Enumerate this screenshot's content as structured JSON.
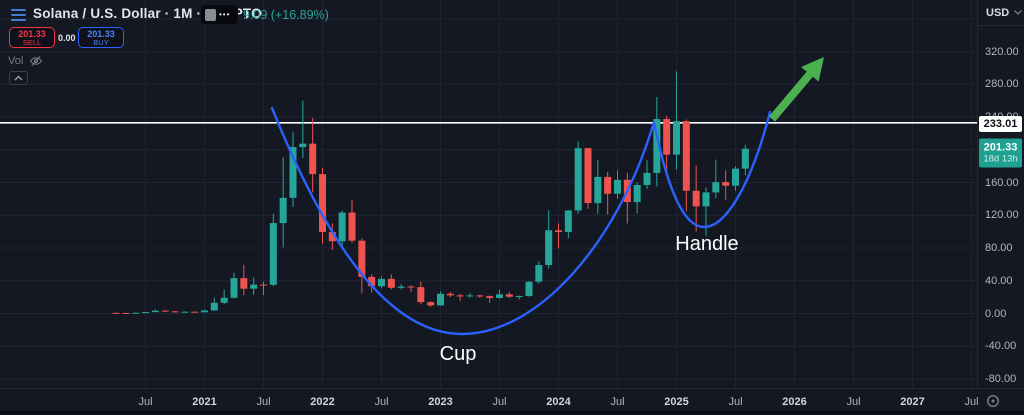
{
  "header": {
    "symbol_title": "Solana / U.S. Dollar · 1M · CRYPTO",
    "menu_dots": "•••",
    "change_text": "9.09 (+16.89%)",
    "sell": {
      "price": "201.33",
      "label": "SELL"
    },
    "spread": "0.00",
    "buy": {
      "price": "201.33",
      "label": "BUY"
    },
    "vol_label": "Vol"
  },
  "annotations": {
    "cup": "Cup",
    "handle": "Handle"
  },
  "price_axis": {
    "currency": "USD",
    "labels": [
      "320.00",
      "280.00",
      "240.00",
      "160.00",
      "120.00",
      "80.00",
      "40.00",
      "0.00",
      "-40.00",
      "-80.00"
    ],
    "line_label": "233.01",
    "current": {
      "price": "201.33",
      "countdown": "18d 13h"
    }
  },
  "time_axis": {
    "ticks": [
      {
        "label": "Jul",
        "i": 3
      },
      {
        "label": "2021",
        "i": 9
      },
      {
        "label": "Jul",
        "i": 15
      },
      {
        "label": "2022",
        "i": 21
      },
      {
        "label": "Jul",
        "i": 27
      },
      {
        "label": "2023",
        "i": 33
      },
      {
        "label": "Jul",
        "i": 39
      },
      {
        "label": "2024",
        "i": 45
      },
      {
        "label": "Jul",
        "i": 51
      },
      {
        "label": "2025",
        "i": 57
      },
      {
        "label": "Jul",
        "i": 63
      },
      {
        "label": "2026",
        "i": 69
      },
      {
        "label": "Jul",
        "i": 75
      },
      {
        "label": "2027",
        "i": 81
      },
      {
        "label": "Jul",
        "i": 87
      }
    ]
  },
  "colors": {
    "background": "#141823",
    "grid": "#1e2431",
    "up": "#26a69a",
    "down": "#ef5350",
    "curve": "#2962ff",
    "arrow": "#4caf50",
    "breakout_line": "#ffffff",
    "sell_accent": "#f23645",
    "buy_accent": "#2962ff",
    "axis_text": "#b2b5be",
    "current_label_bg": "#1fa191"
  },
  "icons": {
    "symbol_menu": "hamburger-menu",
    "ohlc_more": "ellipsis",
    "vol_visibility": "eye-off",
    "pane_collapse": "chevron-up",
    "currency_dropdown": "caret-down",
    "scale_reset": "target-circle"
  },
  "chart_data": {
    "type": "candlestick",
    "title": "Solana / U.S. Dollar",
    "timeframe": "1M",
    "exchange_type": "CRYPTO",
    "start_month": "2020-04",
    "interval_months": 1,
    "visible_price_range": [
      -95,
      380
    ],
    "visible_time_range": [
      "2020-02",
      "2027-10"
    ],
    "grid": true,
    "candles": [
      [
        0.85,
        1.05,
        0.46,
        0.64
      ],
      [
        0.64,
        0.78,
        0.49,
        0.59
      ],
      [
        0.59,
        1.0,
        0.55,
        0.88
      ],
      [
        0.88,
        1.95,
        0.77,
        1.7
      ],
      [
        1.7,
        4.9,
        1.6,
        3.47
      ],
      [
        3.47,
        4.4,
        2.2,
        2.63
      ],
      [
        2.63,
        3.0,
        1.2,
        1.52
      ],
      [
        1.52,
        2.6,
        1.2,
        2.2
      ],
      [
        2.2,
        2.4,
        1.3,
        1.51
      ],
      [
        1.51,
        4.7,
        1.4,
        3.7
      ],
      [
        3.7,
        19.0,
        3.6,
        13.1
      ],
      [
        13.1,
        29.3,
        11.2,
        19.2
      ],
      [
        19.2,
        49.9,
        18.3,
        43.2
      ],
      [
        43.2,
        59.6,
        22.2,
        30.3
      ],
      [
        30.3,
        44.3,
        23.0,
        35.3
      ],
      [
        35.3,
        38.7,
        22.6,
        35.1
      ],
      [
        35.1,
        122.0,
        33.2,
        110.5
      ],
      [
        110.5,
        191.0,
        81.0,
        141.3
      ],
      [
        141.3,
        222.0,
        130.0,
        203.3
      ],
      [
        203.3,
        260.1,
        190.0,
        207.5
      ],
      [
        207.5,
        239.0,
        148.0,
        170.3
      ],
      [
        170.3,
        178.0,
        85.1,
        99.6
      ],
      [
        99.6,
        110.0,
        77.6,
        88.3
      ],
      [
        88.3,
        126.0,
        77.9,
        123.3
      ],
      [
        123.3,
        138.9,
        86.5,
        89.0
      ],
      [
        89.0,
        92.0,
        24.6,
        44.8
      ],
      [
        44.8,
        48.0,
        25.8,
        33.3
      ],
      [
        33.3,
        45.5,
        30.9,
        42.3
      ],
      [
        42.3,
        47.8,
        29.6,
        31.4
      ],
      [
        31.4,
        36.0,
        29.5,
        33.0
      ],
      [
        33.0,
        34.4,
        26.0,
        32.2
      ],
      [
        32.2,
        38.9,
        11.1,
        13.9
      ],
      [
        13.9,
        14.9,
        8.0,
        9.9
      ],
      [
        9.9,
        26.8,
        9.6,
        24.1
      ],
      [
        24.1,
        26.5,
        20.0,
        22.2
      ],
      [
        22.2,
        24.0,
        15.6,
        20.9
      ],
      [
        20.9,
        25.1,
        19.4,
        22.1
      ],
      [
        22.1,
        22.9,
        18.9,
        21.2
      ],
      [
        21.2,
        22.0,
        13.0,
        19.0
      ],
      [
        19.0,
        29.1,
        18.1,
        23.4
      ],
      [
        23.4,
        26.1,
        19.1,
        20.5
      ],
      [
        20.5,
        21.9,
        17.3,
        21.4
      ],
      [
        21.4,
        39.5,
        20.7,
        38.8
      ],
      [
        38.8,
        63.8,
        36.6,
        59.2
      ],
      [
        59.2,
        126.0,
        55.0,
        101.7
      ],
      [
        101.7,
        110.0,
        79.5,
        99.6
      ],
      [
        99.6,
        126.5,
        92.0,
        125.9
      ],
      [
        125.9,
        210.2,
        122.0,
        202.0
      ],
      [
        202.0,
        202.5,
        128.0,
        134.9
      ],
      [
        134.9,
        188.0,
        122.0,
        166.9
      ],
      [
        166.9,
        173.0,
        121.0,
        146.3
      ],
      [
        146.3,
        175.0,
        140.0,
        163.3
      ],
      [
        163.3,
        172.0,
        110.0,
        136.2
      ],
      [
        136.2,
        160.3,
        122.1,
        157.0
      ],
      [
        157.0,
        187.5,
        152.0,
        171.8
      ],
      [
        171.8,
        264.4,
        155.0,
        237.6
      ],
      [
        237.6,
        241.8,
        168.4,
        194.0
      ],
      [
        194.0,
        295.8,
        175.9,
        235.0
      ],
      [
        235.0,
        237.0,
        124.9,
        150.0
      ],
      [
        150.0,
        181.0,
        100.0,
        130.9
      ],
      [
        130.9,
        154.0,
        95.1,
        148.0
      ],
      [
        148.0,
        188.0,
        141.0,
        160.5
      ],
      [
        160.5,
        175.0,
        139.0,
        156.1
      ],
      [
        156.1,
        180.0,
        150.0,
        177.0
      ],
      [
        177.0,
        206.0,
        169.0,
        201.33
      ]
    ],
    "overlays": {
      "horizontal_line_price": 233.01,
      "pattern": "cup-and-handle",
      "cup_label": "Cup",
      "handle_label": "Handle",
      "projection_arrow": "up-right"
    }
  }
}
